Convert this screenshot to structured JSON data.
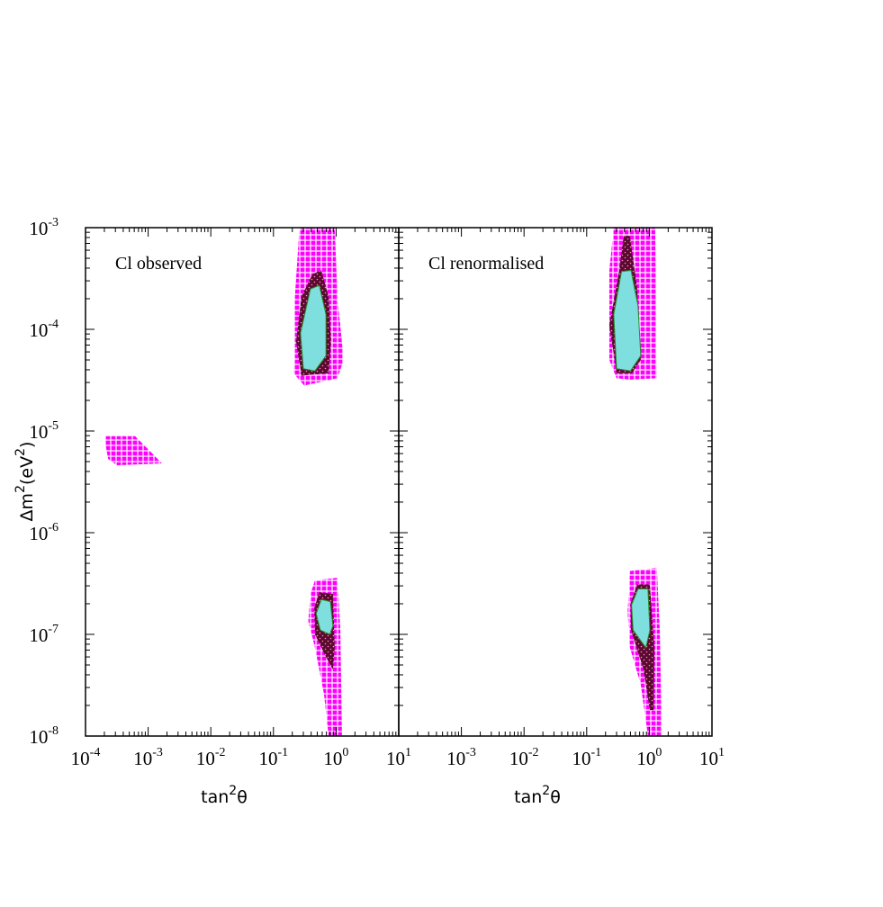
{
  "chart_data": [
    {
      "type": "contour",
      "annotation": "Cl observed",
      "xscale": "log",
      "yscale": "log",
      "xlabel": [
        "tan",
        "2",
        "θ"
      ],
      "ylabel": [
        "Δm",
        "2",
        "(eV",
        "2",
        ")"
      ],
      "xlim": [
        0.0001,
        10
      ],
      "ylim": [
        1e-08,
        0.001
      ],
      "xticks": [
        {
          "value": 0.0001,
          "base": "10",
          "exp": "-4"
        },
        {
          "value": 0.001,
          "base": "10",
          "exp": "-3"
        },
        {
          "value": 0.01,
          "base": "10",
          "exp": "-2"
        },
        {
          "value": 0.1,
          "base": "10",
          "exp": "-1"
        },
        {
          "value": 1,
          "base": "10",
          "exp": "0"
        },
        {
          "value": 10,
          "base": "10",
          "exp": "1"
        }
      ],
      "yticks": [
        {
          "value": 1e-08,
          "base": "10",
          "exp": "-8"
        },
        {
          "value": 1e-07,
          "base": "10",
          "exp": "-7"
        },
        {
          "value": 1e-06,
          "base": "10",
          "exp": "-6"
        },
        {
          "value": 1e-05,
          "base": "10",
          "exp": "-5"
        },
        {
          "value": 0.0001,
          "base": "10",
          "exp": "-4"
        },
        {
          "value": 0.001,
          "base": "10",
          "exp": "-3"
        }
      ],
      "series": [
        {
          "color": "#ff00ff",
          "pattern": "grid",
          "x": [
            0.26,
            0.95,
            1.05,
            1.32,
            1.05,
            0.31,
            0.21,
            0.22
          ],
          "y": [
            0.001,
            0.001,
            0.00021,
            5e-05,
            3.3e-05,
            2.8e-05,
            3.7e-05,
            0.00021
          ]
        },
        {
          "color": "#ff00ff",
          "pattern": "grid",
          "x": [
            0.00021,
            0.00062,
            0.0012,
            0.00166,
            0.00032,
            0.00023,
            0.00021
          ],
          "y": [
            8.9e-06,
            8.9e-06,
            5.9e-06,
            4.8e-06,
            4.6e-06,
            5.3e-06,
            7.2e-06
          ]
        },
        {
          "color": "#ff00ff",
          "pattern": "grid",
          "x": [
            0.46,
            1.05,
            1.17,
            1.24,
            0.76,
            0.64,
            0.46,
            0.36,
            0.39
          ],
          "y": [
            3.4e-07,
            3.6e-07,
            1.1e-07,
            1e-08,
            1e-08,
            2.6e-08,
            7.4e-08,
            1.35e-07,
            2.5e-07
          ]
        },
        {
          "color": "#5a0a2e",
          "pattern": "dots",
          "x": [
            0.42,
            0.58,
            0.76,
            0.83,
            0.76,
            0.28,
            0.23,
            0.28
          ],
          "y": [
            0.00035,
            0.00038,
            0.00021,
            7.6e-05,
            3.7e-05,
            3.5e-05,
            7.6e-05,
            0.00021
          ]
        },
        {
          "color": "#5a0a2e",
          "pattern": "dots",
          "x": [
            0.54,
            0.89,
            0.95,
            0.89,
            0.69,
            0.46,
            0.45
          ],
          "y": [
            2.6e-07,
            2.5e-07,
            7.4e-08,
            4.5e-08,
            6e-08,
            1e-07,
            1.85e-07
          ]
        },
        {
          "color": "#7fdede",
          "pattern": "solid",
          "x": [
            0.39,
            0.54,
            0.69,
            0.69,
            0.46,
            0.3,
            0.27
          ],
          "y": [
            0.00025,
            0.00027,
            0.00014,
            5.5e-05,
            3.9e-05,
            4.1e-05,
            9.2e-05
          ]
        },
        {
          "color": "#7fdede",
          "pattern": "solid",
          "x": [
            0.58,
            0.81,
            0.89,
            0.79,
            0.56,
            0.48
          ],
          "y": [
            2.2e-07,
            2.1e-07,
            1.2e-07,
            1e-07,
            1.1e-07,
            1.6e-07
          ]
        }
      ]
    },
    {
      "type": "contour",
      "annotation": "Cl renormalised",
      "xscale": "log",
      "yscale": "log",
      "xlabel": [
        "tan",
        "2",
        "θ"
      ],
      "xlim": [
        0.0001,
        10
      ],
      "ylim": [
        1e-08,
        0.001
      ],
      "xticks": [
        {
          "value": 0.001,
          "base": "10",
          "exp": "-3"
        },
        {
          "value": 0.01,
          "base": "10",
          "exp": "-2"
        },
        {
          "value": 0.1,
          "base": "10",
          "exp": "-1"
        },
        {
          "value": 1,
          "base": "10",
          "exp": "0"
        },
        {
          "value": 10,
          "base": "10",
          "exp": "1"
        }
      ],
      "yticks": [
        1e-08,
        1e-07,
        1e-06,
        1e-05,
        0.0001,
        0.001
      ],
      "series": [
        {
          "color": "#ff00ff",
          "pattern": "grid",
          "x": [
            0.27,
            1.24,
            1.32,
            0.49,
            0.3,
            0.23,
            0.23
          ],
          "y": [
            0.001,
            0.001,
            3.3e-05,
            3.2e-05,
            3.3e-05,
            5e-05,
            0.00038
          ]
        },
        {
          "color": "#ff00ff",
          "pattern": "grid",
          "x": [
            0.49,
            1.32,
            1.47,
            1.58,
            0.95,
            0.73,
            0.49,
            0.45
          ],
          "y": [
            4.2e-07,
            4.5e-07,
            1.1e-07,
            1e-08,
            1e-08,
            3.2e-08,
            7.4e-08,
            1.65e-07
          ]
        },
        {
          "color": "#5a0a2e",
          "pattern": "dots",
          "x": [
            0.39,
            0.49,
            0.64,
            0.73,
            0.53,
            0.3,
            0.23,
            0.33
          ],
          "y": [
            0.00083,
            0.00083,
            0.00025,
            5e-05,
            3.7e-05,
            3.7e-05,
            0.00011,
            0.00038
          ]
        },
        {
          "color": "#5a0a2e",
          "pattern": "dots",
          "x": [
            0.64,
            1.02,
            1.2,
            1.17,
            1.02,
            0.81,
            0.51,
            0.5
          ],
          "y": [
            3.1e-07,
            3.1e-07,
            7.4e-08,
            1.8e-08,
            1.8e-08,
            4.5e-08,
            1.1e-07,
            2e-07
          ]
        },
        {
          "color": "#7fdede",
          "pattern": "solid",
          "x": [
            0.36,
            0.51,
            0.66,
            0.73,
            0.5,
            0.3,
            0.27
          ],
          "y": [
            0.00037,
            0.00038,
            0.00017,
            5.5e-05,
            3.9e-05,
            4.1e-05,
            0.00014
          ]
        },
        {
          "color": "#7fdede",
          "pattern": "solid",
          "x": [
            0.66,
            0.95,
            1.02,
            0.88,
            0.55,
            0.52
          ],
          "y": [
            2.8e-07,
            2.8e-07,
            1.1e-07,
            7.4e-08,
            1.1e-07,
            1.95e-07
          ]
        }
      ]
    }
  ]
}
